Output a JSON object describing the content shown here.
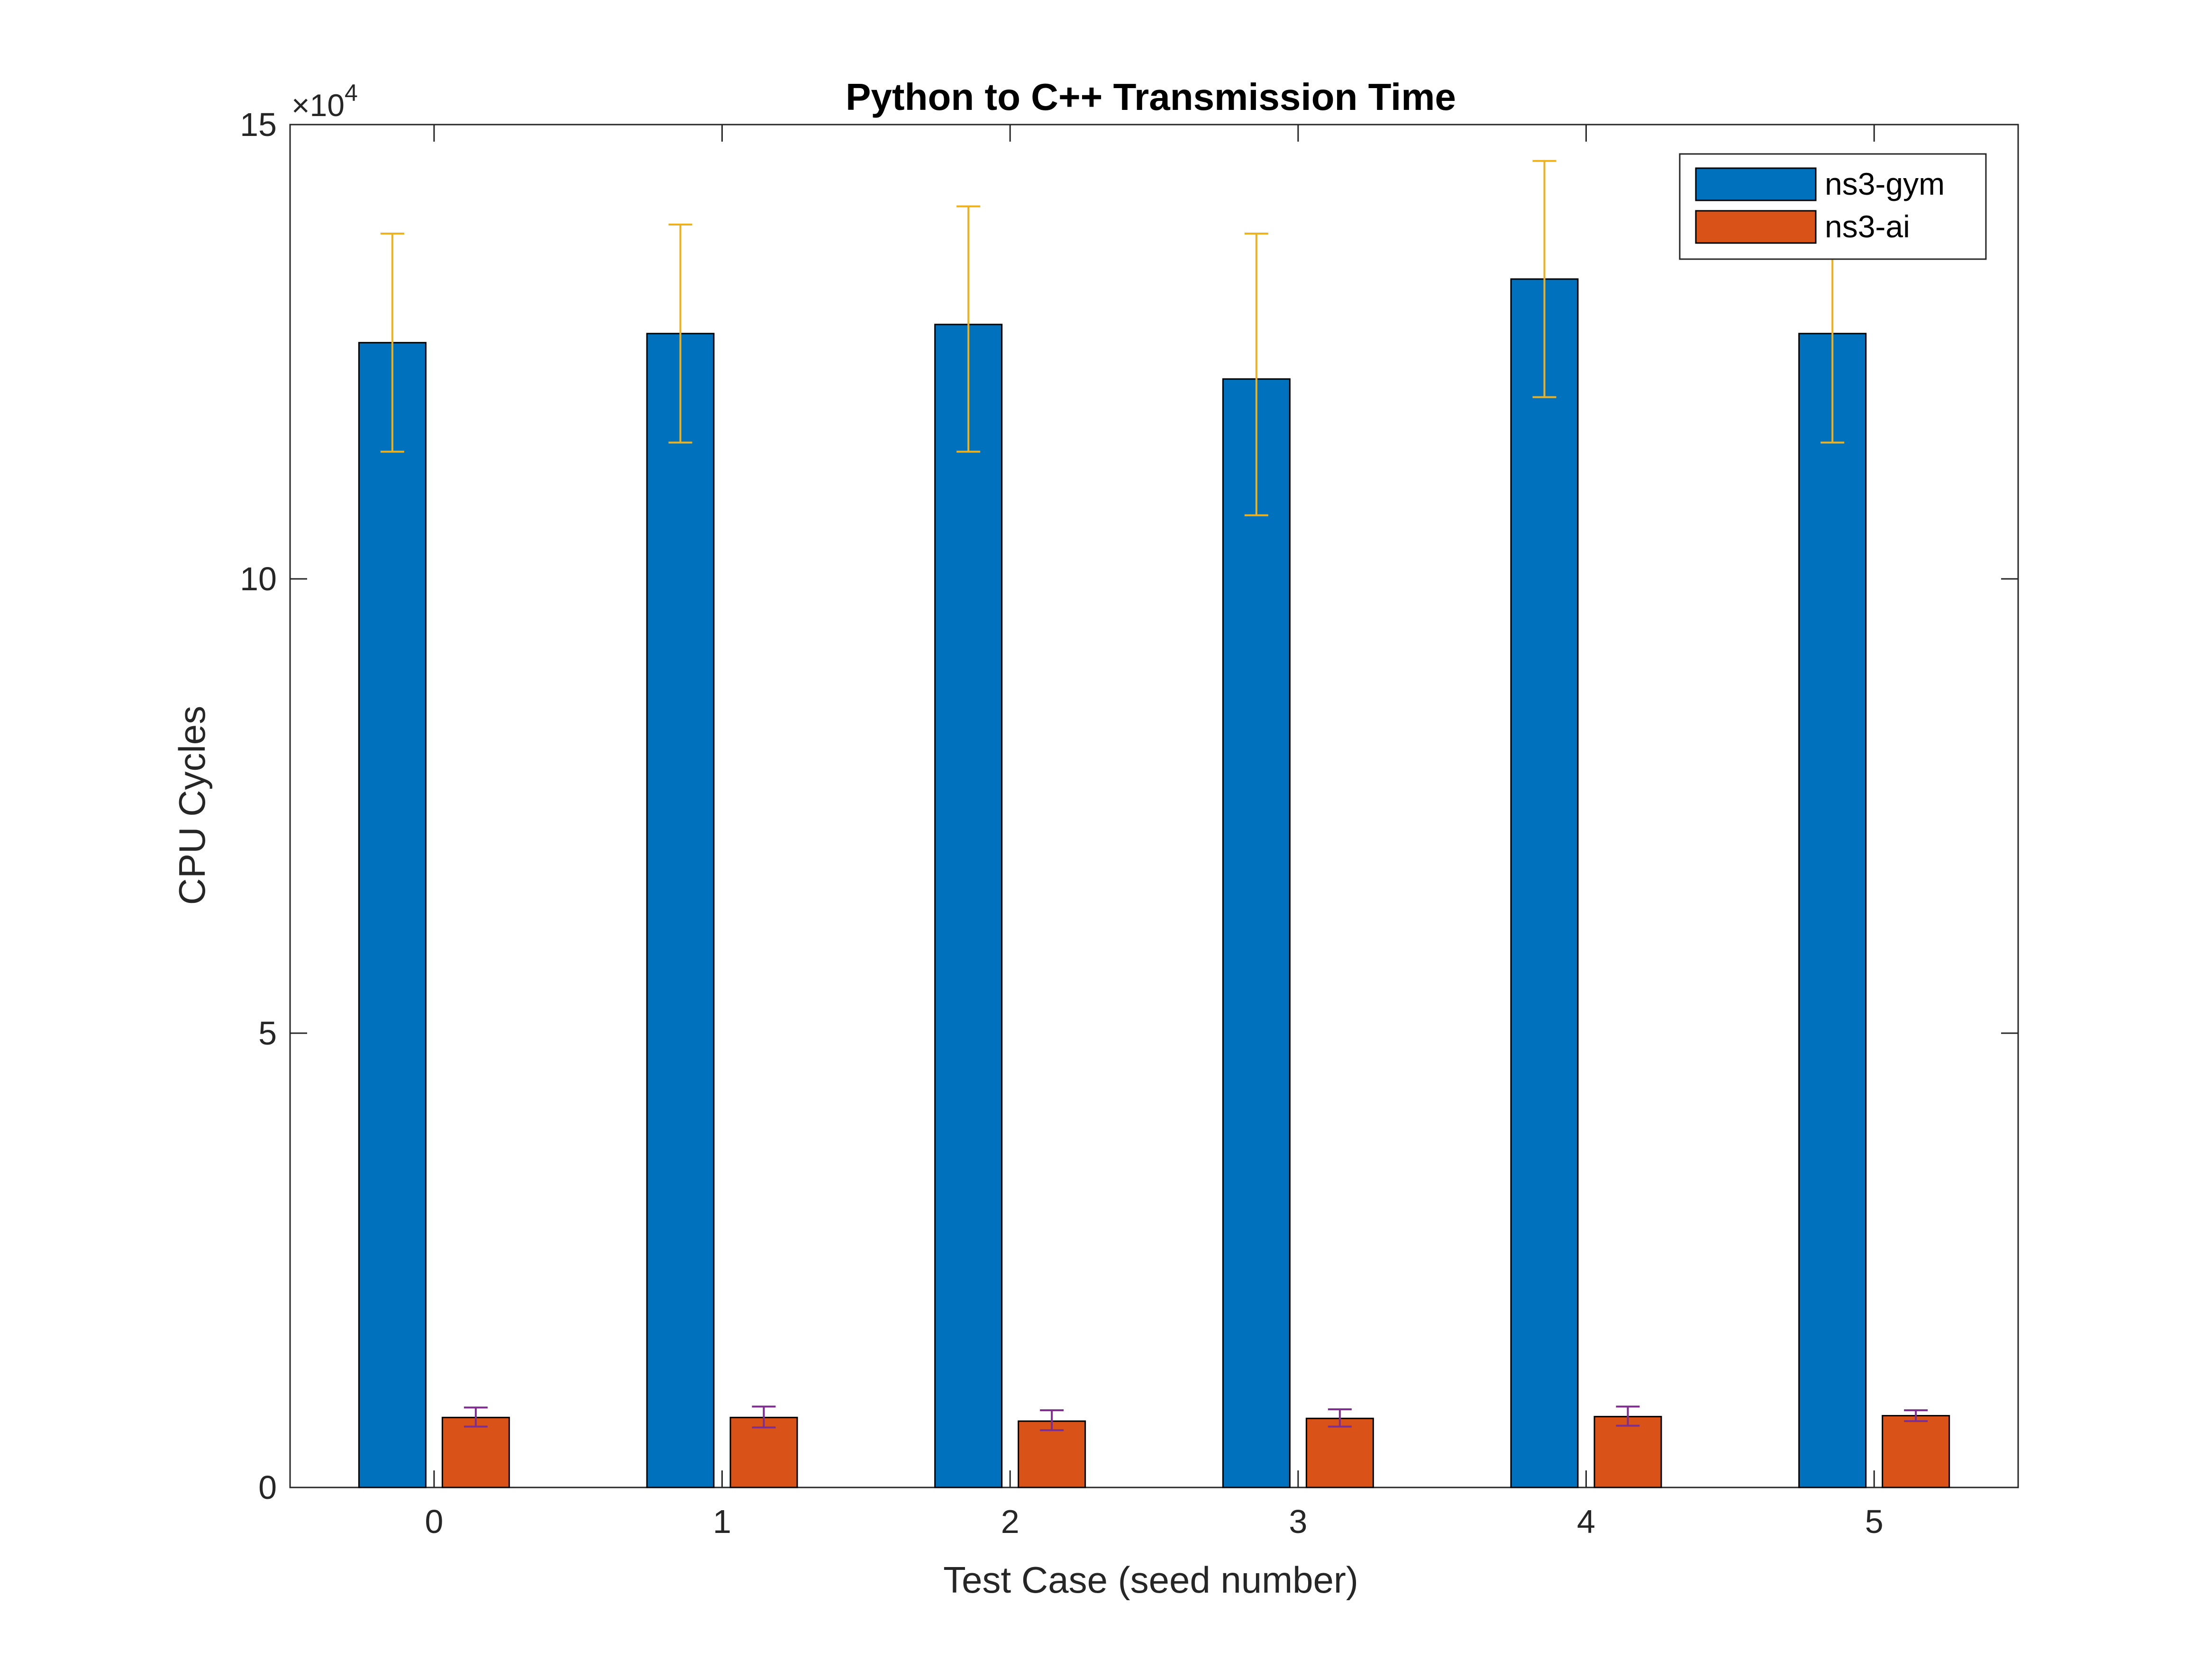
{
  "chart_data": {
    "type": "bar",
    "title": "Python to C++ Transmission Time",
    "xlabel": "Test Case (seed number)",
    "ylabel": "CPU Cycles",
    "y_exponent_prefix": "×10",
    "y_exponent_power": "4",
    "categories": [
      "0",
      "1",
      "2",
      "3",
      "4",
      "5"
    ],
    "ylim": [
      0,
      15
    ],
    "yticks": [
      0,
      5,
      10,
      15
    ],
    "grid": false,
    "legend_position": "top-right",
    "series": [
      {
        "name": "ns3-gym",
        "color": "#0072BD",
        "error_color": "#EDB120",
        "values": [
          12.6,
          12.7,
          12.8,
          12.2,
          13.3,
          12.7
        ],
        "err_low": [
          11.4,
          11.5,
          11.4,
          10.7,
          12.0,
          11.5
        ],
        "err_high": [
          13.8,
          13.9,
          14.1,
          13.8,
          14.6,
          13.9
        ]
      },
      {
        "name": "ns3-ai",
        "color": "#D95319",
        "error_color": "#7E2F8E",
        "values": [
          0.77,
          0.77,
          0.73,
          0.76,
          0.78,
          0.79
        ],
        "err_low": [
          0.67,
          0.66,
          0.63,
          0.67,
          0.68,
          0.73
        ],
        "err_high": [
          0.88,
          0.89,
          0.85,
          0.86,
          0.89,
          0.85
        ]
      }
    ]
  }
}
